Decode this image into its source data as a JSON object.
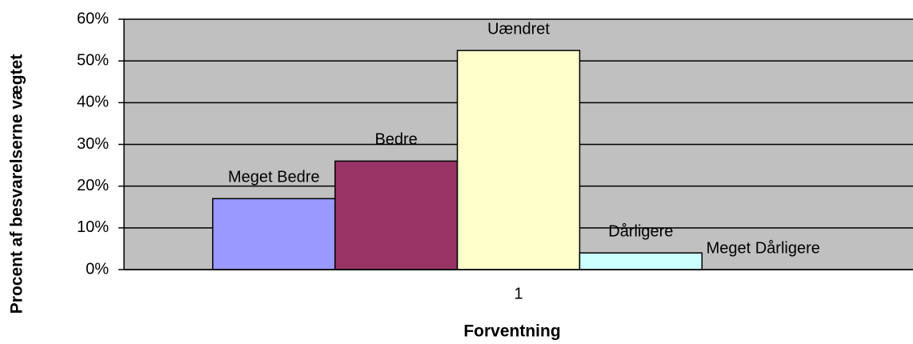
{
  "chart_data": {
    "type": "bar",
    "x_label": "Forventning",
    "y_label": "Procent af besvarelserne vægtet",
    "categories": [
      "1"
    ],
    "series": [
      {
        "name": "Meget Bedre",
        "color": "#9999ff",
        "values": [
          17
        ]
      },
      {
        "name": "Bedre",
        "color": "#993366",
        "values": [
          26
        ]
      },
      {
        "name": "Uændret",
        "color": "#ffffcc",
        "values": [
          52.5
        ]
      },
      {
        "name": "Dårligere",
        "color": "#ccffff",
        "values": [
          4
        ]
      },
      {
        "name": "Meget Dårligere",
        "values": [
          0
        ]
      }
    ],
    "ylim": [
      0,
      60
    ],
    "yticks": [
      {
        "value": 0,
        "label": "0%"
      },
      {
        "value": 10,
        "label": "10%"
      },
      {
        "value": 20,
        "label": "20%"
      },
      {
        "value": 30,
        "label": "30%"
      },
      {
        "value": 40,
        "label": "40%"
      },
      {
        "value": 50,
        "label": "50%"
      },
      {
        "value": 60,
        "label": "60%"
      }
    ],
    "grid": true
  }
}
